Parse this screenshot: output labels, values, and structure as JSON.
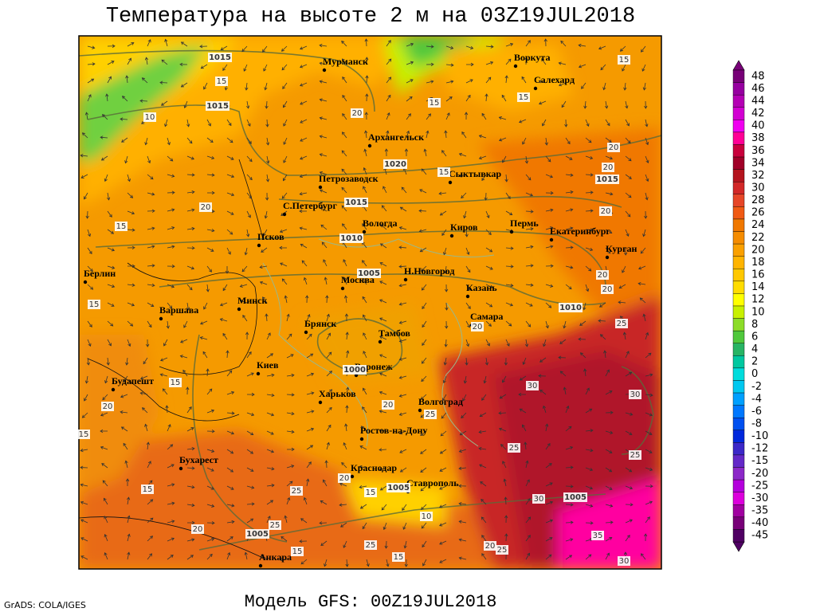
{
  "title": "Температура на высоте 2 м на 03Z19JUL2018",
  "footer": {
    "credit": "GrADS: COLA/IGES",
    "model": "Модель GFS: 00Z19JUL2018"
  },
  "map": {
    "cities": [
      "Мурманск",
      "Воркута",
      "Салехард",
      "Архангельск",
      "Сыктывкар",
      "Петрозаводск",
      "С.Петербург",
      "Вологда",
      "Киров",
      "Пермь",
      "Екатеринбург",
      "Курган",
      "Псков",
      "Берлин",
      "Н.Новгород",
      "Москва",
      "Казань",
      "Варшава",
      "Минск",
      "Самара",
      "Брянск",
      "Тамбов",
      "Воронеж",
      "Киев",
      "Будапешт",
      "Харьков",
      "Волгоград",
      "Ростов-на-Дону",
      "Бухарест",
      "Краснодар",
      "Ставрополь",
      "Анкара"
    ],
    "contour_labels": [
      1015,
      15,
      1015,
      10,
      20,
      15,
      15,
      15,
      20,
      20,
      1015,
      1020,
      15,
      1015,
      20,
      15,
      1010,
      20,
      1005,
      20,
      20,
      1010,
      25,
      15,
      20,
      1000,
      15,
      30,
      30,
      20,
      20,
      25,
      15,
      25,
      25,
      15,
      20,
      25,
      15,
      1005,
      1005,
      30,
      10,
      20,
      25,
      1005,
      25,
      20,
      25,
      15,
      15,
      35,
      30
    ]
  },
  "colorbar": {
    "levels": [
      48,
      46,
      44,
      42,
      40,
      38,
      36,
      34,
      32,
      30,
      28,
      26,
      24,
      22,
      20,
      18,
      16,
      14,
      12,
      10,
      8,
      6,
      4,
      2,
      0,
      -2,
      -4,
      -6,
      -8,
      -10,
      -12,
      -15,
      -20,
      -25,
      -30,
      -35,
      -40,
      -45
    ],
    "colors": [
      "#780078",
      "#9600a0",
      "#b400b4",
      "#d200d2",
      "#f000f0",
      "#ff0096",
      "#c8003c",
      "#a00028",
      "#b4141e",
      "#d22828",
      "#e64628",
      "#f05a14",
      "#f07800",
      "#f58c00",
      "#faa000",
      "#ffb400",
      "#ffc800",
      "#ffdc00",
      "#ffff00",
      "#c8f000",
      "#8cdc28",
      "#50c83c",
      "#28b464",
      "#00c8a0",
      "#00dcdc",
      "#00c8f0",
      "#00a0ff",
      "#0078ff",
      "#0050f0",
      "#0028dc",
      "#3c28c8",
      "#6428c8",
      "#8c28c8",
      "#b400dc",
      "#dc00dc",
      "#a000a0",
      "#780078",
      "#500064"
    ]
  }
}
